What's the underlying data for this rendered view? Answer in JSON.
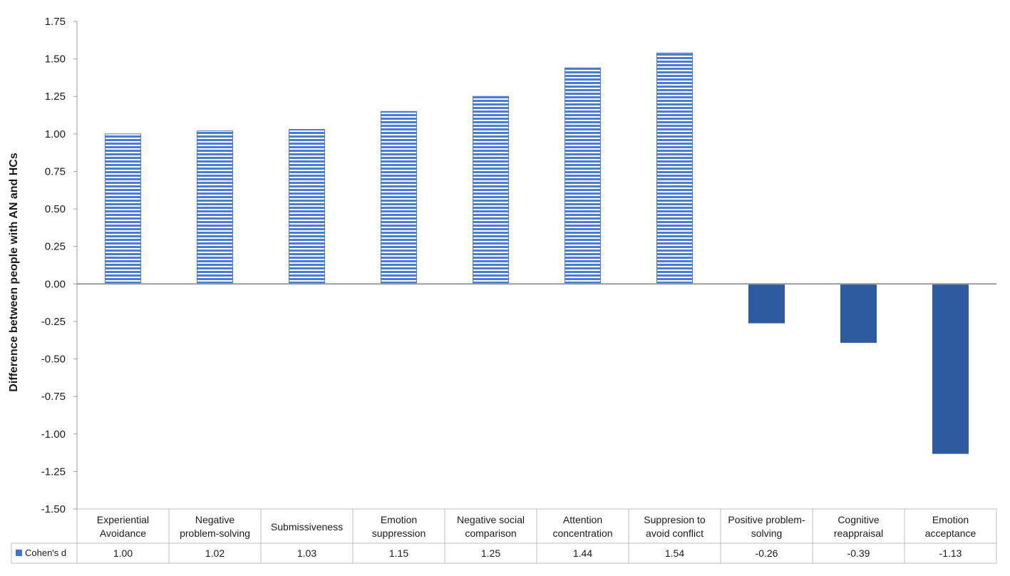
{
  "chart_data": {
    "type": "bar",
    "title": "",
    "ylabel": "Difference between people with AN and HCs",
    "xlabel": "",
    "ylim": [
      -1.5,
      1.75
    ],
    "yticks": [
      "1.75",
      "1.50",
      "1.25",
      "1.00",
      "0.75",
      "0.50",
      "0.25",
      "0.00",
      "-0.25",
      "-0.50",
      "-0.75",
      "-1.00",
      "-1.25",
      "-1.50"
    ],
    "categories": [
      [
        "Experiential",
        "Avoidance"
      ],
      [
        "Negative",
        "problem-solving"
      ],
      [
        "Submissiveness"
      ],
      [
        "Emotion",
        "suppression"
      ],
      [
        "Negative social",
        "comparison"
      ],
      [
        "Attention",
        "concentration"
      ],
      [
        "Suppresion to",
        "avoid conflict"
      ],
      [
        "Positive problem-",
        "solving"
      ],
      [
        "Cognitive",
        "reappraisal"
      ],
      [
        "Emotion",
        "acceptance"
      ]
    ],
    "series": [
      {
        "name": "Cohen's d",
        "values": [
          1.0,
          1.02,
          1.03,
          1.15,
          1.25,
          1.44,
          1.54,
          -0.26,
          -0.39,
          -1.13
        ],
        "value_labels": [
          "1.00",
          "1.02",
          "1.03",
          "1.15",
          "1.25",
          "1.44",
          "1.54",
          "-0.26",
          "-0.39",
          "-1.13"
        ]
      }
    ],
    "grid": false,
    "legend": "data-table-left",
    "colors": {
      "positive_fill": "#4a7dcf",
      "positive_stripe": "#ffffff",
      "negative_fill": "#2e5aa0",
      "axis": "#9a9a9a",
      "table_border": "#bdbdbd",
      "legend_swatch": "#4472c4"
    }
  }
}
